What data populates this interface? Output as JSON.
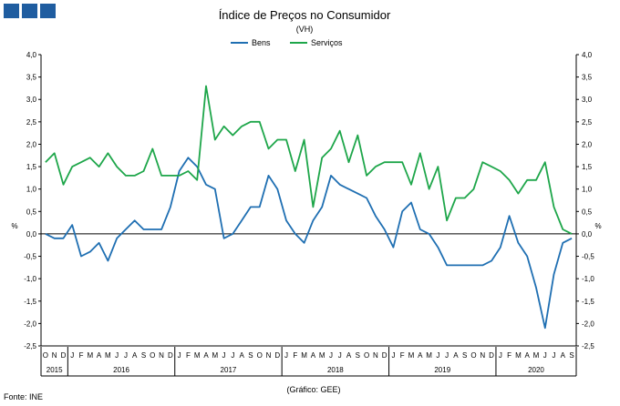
{
  "colors": {
    "bens": "#1f6fb2",
    "servicos": "#1ea64a",
    "axis": "#000000",
    "logo": "#1f5da0"
  },
  "logo": {
    "icon": "gee-logo-icon"
  },
  "source": "Fonte: INE",
  "credit": "(Gráfico: GEE)",
  "chart_data": {
    "type": "line",
    "title": "Índice de Preços no Consumidor",
    "subtitle": "(VH)",
    "ylabel_left": "%",
    "ylabel_right": "%",
    "ylim": [
      -2.5,
      4.0
    ],
    "yticks": [
      "4,0",
      "3,5",
      "3,0",
      "2,5",
      "2,0",
      "1,5",
      "1,0",
      "0,5",
      "0,0",
      "-0,5",
      "-1,0",
      "-1,5",
      "-2,0",
      "-2,5"
    ],
    "grid": false,
    "legend_position": "top-center",
    "x": [
      "O",
      "N",
      "D",
      "J",
      "F",
      "M",
      "A",
      "M",
      "J",
      "J",
      "A",
      "S",
      "O",
      "N",
      "D",
      "J",
      "F",
      "M",
      "A",
      "M",
      "J",
      "J",
      "A",
      "S",
      "O",
      "N",
      "D",
      "J",
      "F",
      "M",
      "A",
      "M",
      "J",
      "J",
      "A",
      "S",
      "O",
      "N",
      "D",
      "J",
      "F",
      "M",
      "A",
      "M",
      "J",
      "J",
      "A",
      "S",
      "O",
      "N",
      "D",
      "J",
      "F",
      "M",
      "A",
      "M",
      "J",
      "J",
      "A",
      "S"
    ],
    "year_groups": [
      {
        "label": "2015",
        "start": 0,
        "end": 2
      },
      {
        "label": "2016",
        "start": 3,
        "end": 14
      },
      {
        "label": "2017",
        "start": 15,
        "end": 26
      },
      {
        "label": "2018",
        "start": 27,
        "end": 38
      },
      {
        "label": "2019",
        "start": 39,
        "end": 50
      },
      {
        "label": "2020",
        "start": 51,
        "end": 59
      }
    ],
    "series": [
      {
        "name": "Bens",
        "values": [
          0.0,
          -0.1,
          -0.1,
          0.2,
          -0.5,
          -0.4,
          -0.2,
          -0.6,
          -0.1,
          0.1,
          0.3,
          0.1,
          0.1,
          0.1,
          0.6,
          1.4,
          1.7,
          1.5,
          1.1,
          1.0,
          -0.1,
          0.0,
          0.3,
          0.6,
          0.6,
          1.3,
          1.0,
          0.3,
          0.0,
          -0.2,
          0.3,
          0.6,
          1.3,
          1.1,
          1.0,
          0.9,
          0.8,
          0.4,
          0.1,
          -0.3,
          0.5,
          0.7,
          0.1,
          0.0,
          -0.3,
          -0.7,
          -0.7,
          -0.7,
          -0.7,
          -0.7,
          -0.6,
          -0.3,
          0.4,
          -0.2,
          -0.5,
          -1.2,
          -2.1,
          -0.9,
          -0.2,
          -0.1
        ]
      },
      {
        "name": "Serviços",
        "values": [
          1.6,
          1.8,
          1.1,
          1.5,
          1.6,
          1.7,
          1.5,
          1.8,
          1.5,
          1.3,
          1.3,
          1.4,
          1.9,
          1.3,
          1.3,
          1.3,
          1.4,
          1.2,
          3.3,
          2.1,
          2.4,
          2.2,
          2.4,
          2.5,
          2.5,
          1.9,
          2.1,
          2.1,
          1.4,
          2.1,
          0.6,
          1.7,
          1.9,
          2.3,
          1.6,
          2.2,
          1.3,
          1.5,
          1.6,
          1.6,
          1.6,
          1.1,
          1.8,
          1.0,
          1.5,
          0.3,
          0.8,
          0.8,
          1.0,
          1.6,
          1.5,
          1.4,
          1.2,
          0.9,
          1.2,
          1.2,
          1.6,
          0.6,
          0.1,
          0.0
        ]
      }
    ]
  }
}
